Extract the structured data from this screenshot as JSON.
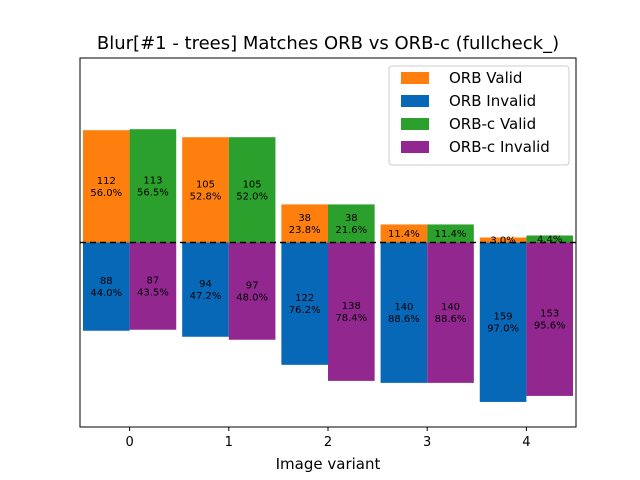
{
  "chart_data": {
    "type": "bar",
    "title": "Blur[#1 - trees] Matches ORB vs ORB-c (fullcheck_)",
    "xlabel": "Image variant",
    "ylabel": "",
    "categories": [
      "0",
      "1",
      "2",
      "3",
      "4"
    ],
    "ylim": [
      -184,
      184
    ],
    "grid": false,
    "legend_position": "top-right",
    "baseline": "dashed horizontal line at 0",
    "series": [
      {
        "name": "ORB Valid",
        "color": "#ff7f0e",
        "direction": "up",
        "values": [
          112,
          105,
          38,
          18,
          5
        ],
        "labels": [
          [
            "112",
            "56.0%"
          ],
          [
            "105",
            "52.8%"
          ],
          [
            "38",
            "23.8%"
          ],
          [
            "11.4%"
          ],
          [
            "3.0%"
          ]
        ]
      },
      {
        "name": "ORB Invalid",
        "color": "#0868b8",
        "direction": "down",
        "values": [
          88,
          94,
          122,
          140,
          159
        ],
        "labels": [
          [
            "88",
            "44.0%"
          ],
          [
            "94",
            "47.2%"
          ],
          [
            "122",
            "76.2%"
          ],
          [
            "140",
            "88.6%"
          ],
          [
            "159",
            "97.0%"
          ]
        ]
      },
      {
        "name": "ORB-c Valid",
        "color": "#2ca02c",
        "direction": "up",
        "values": [
          113,
          105,
          38,
          18,
          7
        ],
        "labels": [
          [
            "113",
            "56.5%"
          ],
          [
            "105",
            "52.0%"
          ],
          [
            "38",
            "21.6%"
          ],
          [
            "11.4%"
          ],
          [
            "4.4%"
          ]
        ]
      },
      {
        "name": "ORB-c Invalid",
        "color": "#92278f",
        "direction": "down",
        "values": [
          87,
          97,
          138,
          140,
          153
        ],
        "labels": [
          [
            "87",
            "43.5%"
          ],
          [
            "97",
            "48.0%"
          ],
          [
            "138",
            "78.4%"
          ],
          [
            "140",
            "88.6%"
          ],
          [
            "153",
            "95.6%"
          ]
        ]
      }
    ],
    "groups": [
      {
        "name": "ORB",
        "valid_series": 0,
        "invalid_series": 1
      },
      {
        "name": "ORB-c",
        "valid_series": 2,
        "invalid_series": 3
      }
    ]
  }
}
